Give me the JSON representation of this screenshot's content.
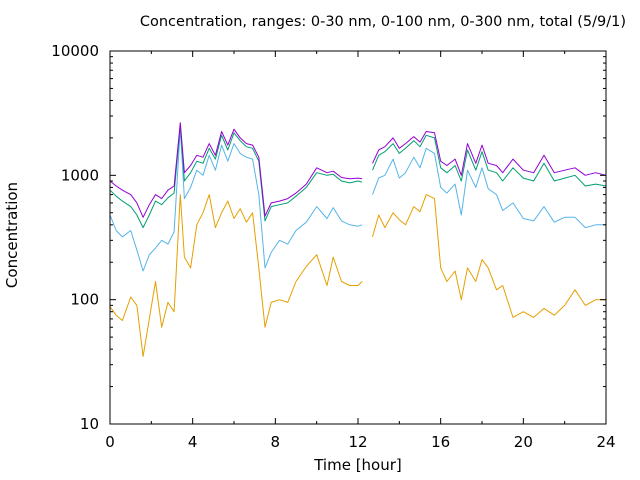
{
  "chart_data": {
    "type": "line",
    "title": "Concentration, ranges: 0-30 nm, 0-100 nm, 0-300 nm, total (5/9/1)",
    "xlabel": "Time [hour]",
    "ylabel": "Concentration",
    "xlim": [
      0,
      24
    ],
    "ylim": [
      10,
      10000
    ],
    "yscale": "log",
    "xticks": [
      "0",
      "4",
      "8",
      "12",
      "16",
      "20",
      "24"
    ],
    "yticks": [
      "10",
      "100",
      "1000",
      "10000"
    ],
    "grid": false,
    "series": [
      {
        "color": "#e69f00",
        "x": [
          0,
          0.3,
          0.6,
          1.0,
          1.3,
          1.6,
          1.9,
          2.2,
          2.5,
          2.8,
          3.1,
          3.4,
          3.6,
          3.9,
          4.2,
          4.5,
          4.8,
          5.1,
          5.4,
          5.7,
          6.0,
          6.3,
          6.6,
          6.9,
          7.2,
          7.5,
          7.8,
          8.2,
          8.6,
          9.0,
          9.5,
          10.0,
          10.5,
          10.8,
          11.2,
          11.6,
          12.0,
          12.2,
          null,
          12.7,
          13.0,
          13.3,
          13.7,
          14.0,
          14.3,
          14.7,
          15.0,
          15.3,
          15.7,
          16.0,
          16.3,
          16.7,
          17.0,
          17.3,
          17.7,
          18.0,
          18.3,
          18.7,
          19.0,
          19.5,
          20.0,
          20.5,
          21.0,
          21.5,
          22.0,
          22.5,
          23.0,
          23.5,
          24.0
        ],
        "y": [
          88,
          75,
          68,
          105,
          90,
          35,
          70,
          140,
          60,
          95,
          80,
          700,
          220,
          180,
          400,
          500,
          700,
          380,
          500,
          620,
          450,
          540,
          420,
          500,
          180,
          60,
          95,
          100,
          95,
          140,
          185,
          230,
          130,
          220,
          140,
          130,
          130,
          140,
          null,
          320,
          480,
          380,
          500,
          440,
          400,
          560,
          510,
          700,
          650,
          180,
          140,
          170,
          100,
          180,
          140,
          210,
          180,
          120,
          130,
          72,
          80,
          72,
          85,
          75,
          90,
          120,
          90,
          100,
          100
        ]
      },
      {
        "color": "#56b4e9",
        "x": [
          0,
          0.3,
          0.6,
          1.0,
          1.3,
          1.6,
          1.9,
          2.2,
          2.5,
          2.8,
          3.1,
          3.4,
          3.6,
          3.9,
          4.2,
          4.5,
          4.8,
          5.1,
          5.4,
          5.7,
          6.0,
          6.3,
          6.6,
          6.9,
          7.2,
          7.5,
          7.8,
          8.2,
          8.6,
          9.0,
          9.5,
          10.0,
          10.5,
          10.8,
          11.2,
          11.6,
          12.0,
          12.2,
          null,
          12.7,
          13.0,
          13.3,
          13.7,
          14.0,
          14.3,
          14.7,
          15.0,
          15.3,
          15.7,
          16.0,
          16.3,
          16.7,
          17.0,
          17.3,
          17.7,
          18.0,
          18.3,
          18.7,
          19.0,
          19.5,
          20.0,
          20.5,
          21.0,
          21.5,
          22.0,
          22.5,
          23.0,
          23.5,
          24.0
        ],
        "y": [
          480,
          360,
          320,
          360,
          250,
          170,
          230,
          260,
          300,
          280,
          350,
          2400,
          650,
          800,
          1100,
          1000,
          1450,
          1100,
          1750,
          1300,
          1800,
          1500,
          1400,
          1350,
          700,
          180,
          240,
          300,
          280,
          360,
          420,
          560,
          450,
          550,
          430,
          400,
          390,
          400,
          null,
          700,
          950,
          1000,
          1350,
          950,
          1050,
          1400,
          1150,
          1650,
          1500,
          800,
          720,
          850,
          480,
          1100,
          800,
          1150,
          780,
          700,
          520,
          600,
          450,
          430,
          560,
          420,
          460,
          460,
          380,
          400,
          400
        ]
      },
      {
        "color": "#009e73",
        "x": [
          0,
          0.3,
          0.6,
          1.0,
          1.3,
          1.6,
          1.9,
          2.2,
          2.5,
          2.8,
          3.1,
          3.4,
          3.6,
          3.9,
          4.2,
          4.5,
          4.8,
          5.1,
          5.4,
          5.7,
          6.0,
          6.3,
          6.6,
          6.9,
          7.2,
          7.5,
          7.8,
          8.2,
          8.6,
          9.0,
          9.5,
          10.0,
          10.5,
          10.8,
          11.2,
          11.6,
          12.0,
          12.2,
          null,
          12.7,
          13.0,
          13.3,
          13.7,
          14.0,
          14.3,
          14.7,
          15.0,
          15.3,
          15.7,
          16.0,
          16.3,
          16.7,
          17.0,
          17.3,
          17.7,
          18.0,
          18.3,
          18.7,
          19.0,
          19.5,
          20.0,
          20.5,
          21.0,
          21.5,
          22.0,
          22.5,
          23.0,
          23.5,
          24.0
        ],
        "y": [
          760,
          680,
          620,
          560,
          480,
          380,
          480,
          620,
          580,
          660,
          720,
          2500,
          900,
          1050,
          1300,
          1250,
          1650,
          1350,
          2100,
          1600,
          2200,
          1900,
          1700,
          1650,
          1300,
          430,
          560,
          580,
          600,
          680,
          800,
          1050,
          1000,
          1020,
          900,
          870,
          900,
          880,
          null,
          1100,
          1450,
          1550,
          1800,
          1500,
          1650,
          1900,
          1700,
          2100,
          2000,
          1150,
          1050,
          1200,
          900,
          1600,
          1100,
          1550,
          1100,
          1050,
          900,
          1150,
          950,
          900,
          1250,
          900,
          950,
          1000,
          820,
          850,
          820
        ]
      },
      {
        "color": "#9400d3",
        "x": [
          0,
          0.3,
          0.6,
          1.0,
          1.3,
          1.6,
          1.9,
          2.2,
          2.5,
          2.8,
          3.1,
          3.4,
          3.6,
          3.9,
          4.2,
          4.5,
          4.8,
          5.1,
          5.4,
          5.7,
          6.0,
          6.3,
          6.6,
          6.9,
          7.2,
          7.5,
          7.8,
          8.2,
          8.6,
          9.0,
          9.5,
          10.0,
          10.5,
          10.8,
          11.2,
          11.6,
          12.0,
          12.2,
          null,
          12.7,
          13.0,
          13.3,
          13.7,
          14.0,
          14.3,
          14.7,
          15.0,
          15.3,
          15.7,
          16.0,
          16.3,
          16.7,
          17.0,
          17.3,
          17.7,
          18.0,
          18.3,
          18.7,
          19.0,
          19.5,
          20.0,
          20.5,
          21.0,
          21.5,
          22.0,
          22.5,
          23.0,
          23.5,
          24.0
        ],
        "y": [
          900,
          820,
          760,
          700,
          600,
          460,
          580,
          700,
          650,
          760,
          820,
          2650,
          1050,
          1200,
          1450,
          1400,
          1800,
          1450,
          2250,
          1750,
          2350,
          2000,
          1800,
          1750,
          1400,
          470,
          600,
          620,
          650,
          720,
          850,
          1150,
          1050,
          1080,
          960,
          940,
          950,
          940,
          null,
          1250,
          1600,
          1700,
          2000,
          1650,
          1800,
          2050,
          1850,
          2250,
          2200,
          1300,
          1200,
          1350,
          1000,
          1800,
          1250,
          1750,
          1250,
          1200,
          1050,
          1350,
          1100,
          1050,
          1450,
          1050,
          1100,
          1150,
          1000,
          1050,
          1000
        ]
      }
    ]
  }
}
